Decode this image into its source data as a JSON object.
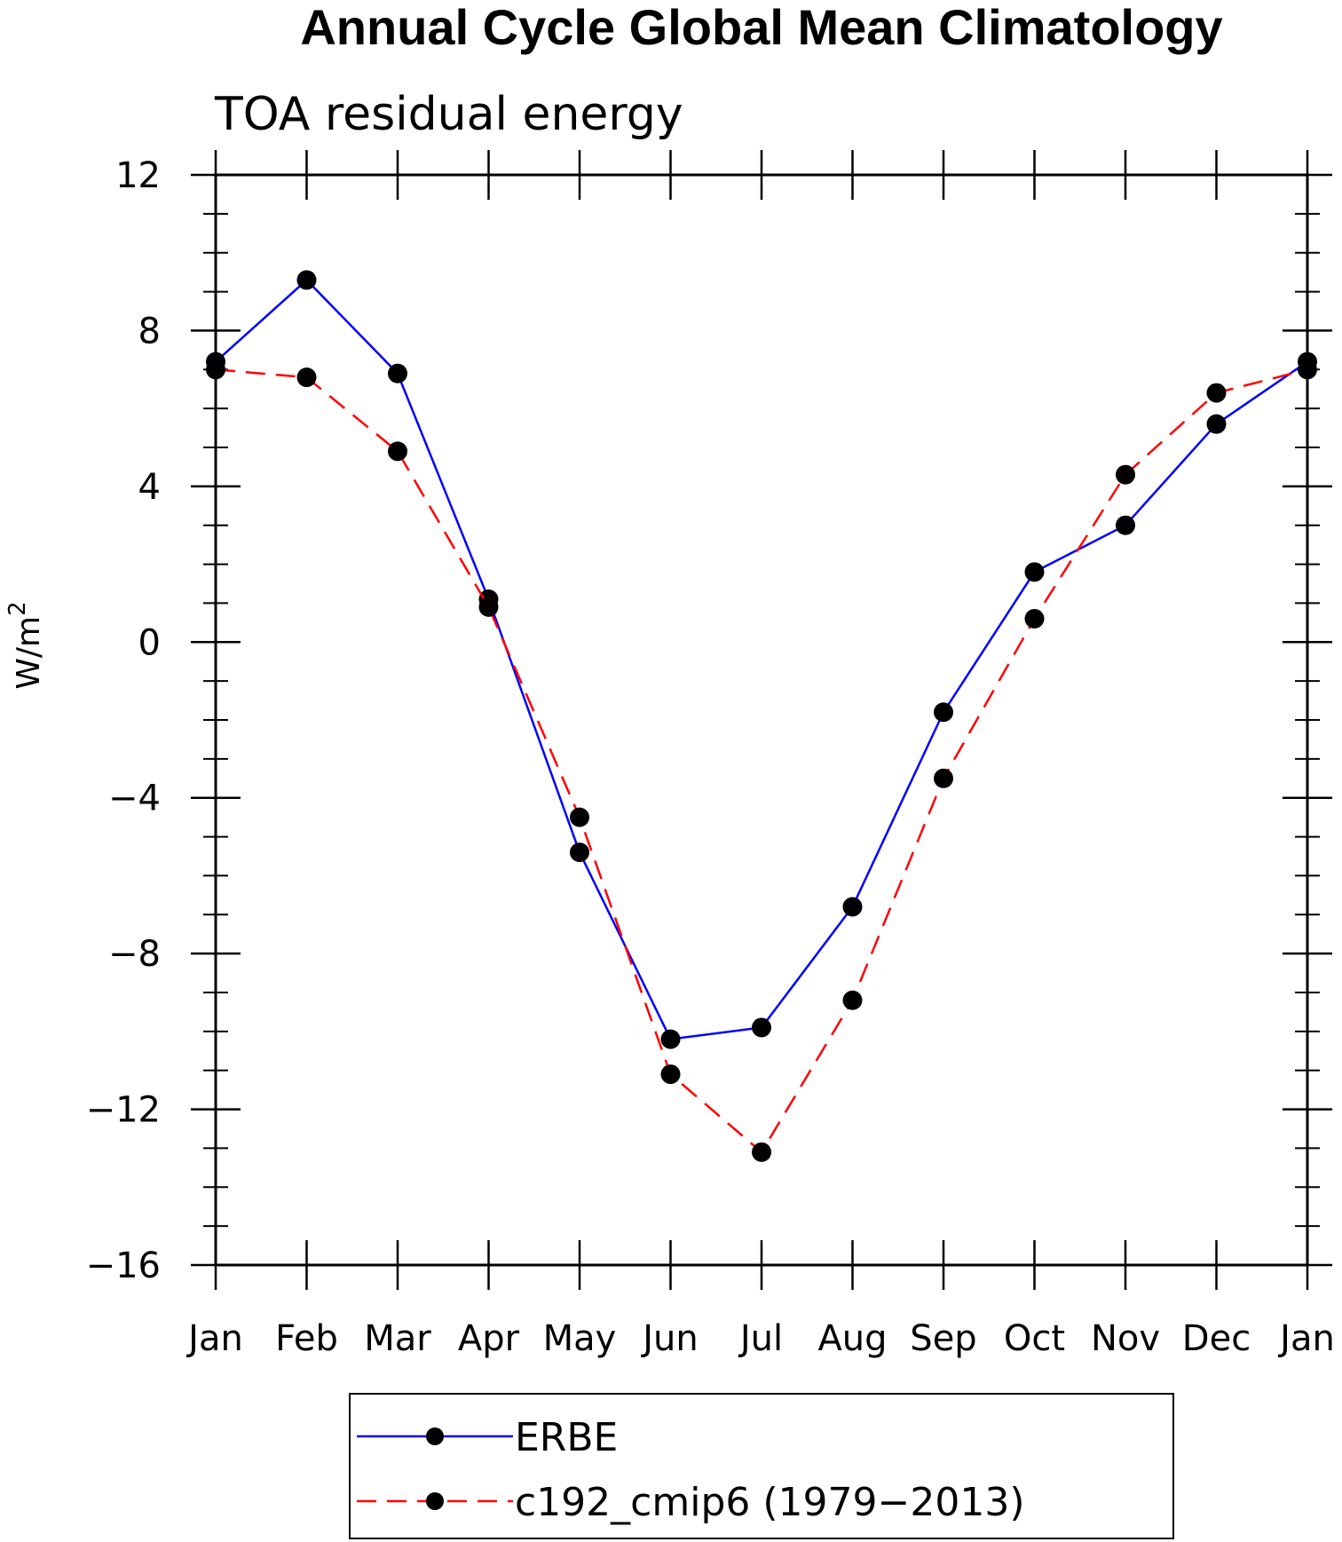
{
  "chart_data": {
    "type": "line",
    "title": "Annual Cycle Global Mean Climatology",
    "subtitle": "TOA residual energy",
    "ylabel": "W/m",
    "ylabel_sup": "2",
    "xlabel": "",
    "categories": [
      "Jan",
      "Feb",
      "Mar",
      "Apr",
      "May",
      "Jun",
      "Jul",
      "Aug",
      "Sep",
      "Oct",
      "Nov",
      "Dec",
      "Jan"
    ],
    "ylim": [
      -16,
      12
    ],
    "yticks": [
      12,
      8,
      4,
      0,
      -4,
      -8,
      -12,
      -16
    ],
    "ytick_labels": [
      "12",
      "8",
      "4",
      "0",
      "−4",
      "−8",
      "−12",
      "−16"
    ],
    "grid": false,
    "legend_position": "bottom",
    "series": [
      {
        "name": "ERBE",
        "color": "#0000ff",
        "style": "solid",
        "marker": "filled-circle",
        "values": [
          7.2,
          9.3,
          6.9,
          1.1,
          -5.4,
          -10.2,
          -9.9,
          -6.8,
          -1.8,
          1.8,
          3.0,
          5.6,
          7.2
        ]
      },
      {
        "name": "c192_cmip6 (1979−2013)",
        "color": "#ff0000",
        "style": "dashed",
        "marker": "filled-circle",
        "values": [
          7.0,
          6.8,
          4.9,
          0.9,
          -4.5,
          -11.1,
          -13.1,
          -9.2,
          -3.5,
          0.6,
          4.3,
          6.4,
          7.0
        ]
      }
    ]
  }
}
